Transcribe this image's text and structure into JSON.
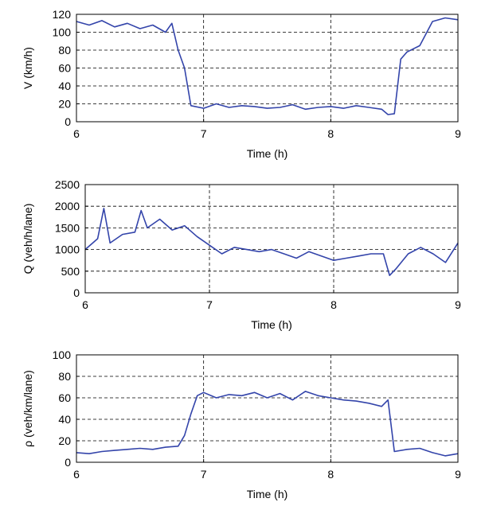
{
  "chart_data": [
    {
      "type": "line",
      "xlabel": "Time (h)",
      "ylabel": "V (km/h)",
      "xlim": [
        6,
        9
      ],
      "ylim": [
        0,
        120
      ],
      "xticks": [
        "6",
        "7",
        "8",
        "9"
      ],
      "yticks": [
        "0",
        "20",
        "40",
        "60",
        "80",
        "100",
        "120"
      ],
      "grid": true,
      "color": "#3344aa",
      "series": [
        {
          "x": [
            6.0,
            6.1,
            6.2,
            6.3,
            6.4,
            6.5,
            6.6,
            6.7,
            6.75,
            6.8,
            6.85,
            6.9,
            7.0,
            7.1,
            7.2,
            7.3,
            7.4,
            7.5,
            7.6,
            7.7,
            7.8,
            7.9,
            8.0,
            8.1,
            8.2,
            8.3,
            8.4,
            8.45,
            8.5,
            8.55,
            8.6,
            8.7,
            8.8,
            8.9,
            9.0
          ],
          "y": [
            112,
            108,
            113,
            106,
            110,
            104,
            108,
            100,
            110,
            80,
            60,
            18,
            15,
            20,
            16,
            18,
            17,
            15,
            16,
            19,
            14,
            16,
            17,
            15,
            18,
            16,
            14,
            8,
            9,
            70,
            78,
            85,
            112,
            116,
            114
          ]
        }
      ]
    },
    {
      "type": "line",
      "xlabel": "Time (h)",
      "ylabel": "Q (veh/h/lane)",
      "xlim": [
        6,
        9
      ],
      "ylim": [
        0,
        2500
      ],
      "xticks": [
        "6",
        "7",
        "8",
        "9"
      ],
      "yticks": [
        "0",
        "500",
        "1000",
        "1500",
        "2000",
        "2500"
      ],
      "grid": true,
      "color": "#3344aa",
      "series": [
        {
          "x": [
            6.0,
            6.1,
            6.15,
            6.2,
            6.3,
            6.4,
            6.45,
            6.5,
            6.6,
            6.7,
            6.8,
            6.9,
            7.0,
            7.1,
            7.2,
            7.3,
            7.4,
            7.5,
            7.6,
            7.7,
            7.8,
            7.9,
            8.0,
            8.1,
            8.2,
            8.3,
            8.4,
            8.45,
            8.5,
            8.6,
            8.7,
            8.8,
            8.9,
            9.0
          ],
          "y": [
            1000,
            1250,
            1950,
            1150,
            1350,
            1400,
            1900,
            1500,
            1700,
            1450,
            1550,
            1300,
            1100,
            900,
            1050,
            1000,
            950,
            1000,
            900,
            800,
            950,
            850,
            750,
            800,
            850,
            900,
            900,
            400,
            550,
            900,
            1050,
            900,
            700,
            1150
          ]
        }
      ]
    },
    {
      "type": "line",
      "xlabel": "Time (h)",
      "ylabel": "ρ (veh/km/lane)",
      "xlim": [
        6,
        9
      ],
      "ylim": [
        0,
        100
      ],
      "xticks": [
        "6",
        "7",
        "8",
        "9"
      ],
      "yticks": [
        "0",
        "20",
        "40",
        "60",
        "80",
        "100"
      ],
      "grid": true,
      "color": "#3344aa",
      "series": [
        {
          "x": [
            6.0,
            6.1,
            6.2,
            6.3,
            6.4,
            6.5,
            6.6,
            6.7,
            6.8,
            6.85,
            6.9,
            6.95,
            7.0,
            7.1,
            7.2,
            7.3,
            7.4,
            7.5,
            7.6,
            7.7,
            7.8,
            7.9,
            8.0,
            8.1,
            8.2,
            8.3,
            8.4,
            8.45,
            8.5,
            8.6,
            8.7,
            8.8,
            8.9,
            9.0
          ],
          "y": [
            9,
            8,
            10,
            11,
            12,
            13,
            12,
            14,
            15,
            25,
            45,
            62,
            65,
            60,
            63,
            62,
            65,
            60,
            64,
            58,
            66,
            62,
            60,
            58,
            57,
            55,
            52,
            58,
            10,
            12,
            13,
            9,
            6,
            8
          ]
        }
      ]
    }
  ]
}
